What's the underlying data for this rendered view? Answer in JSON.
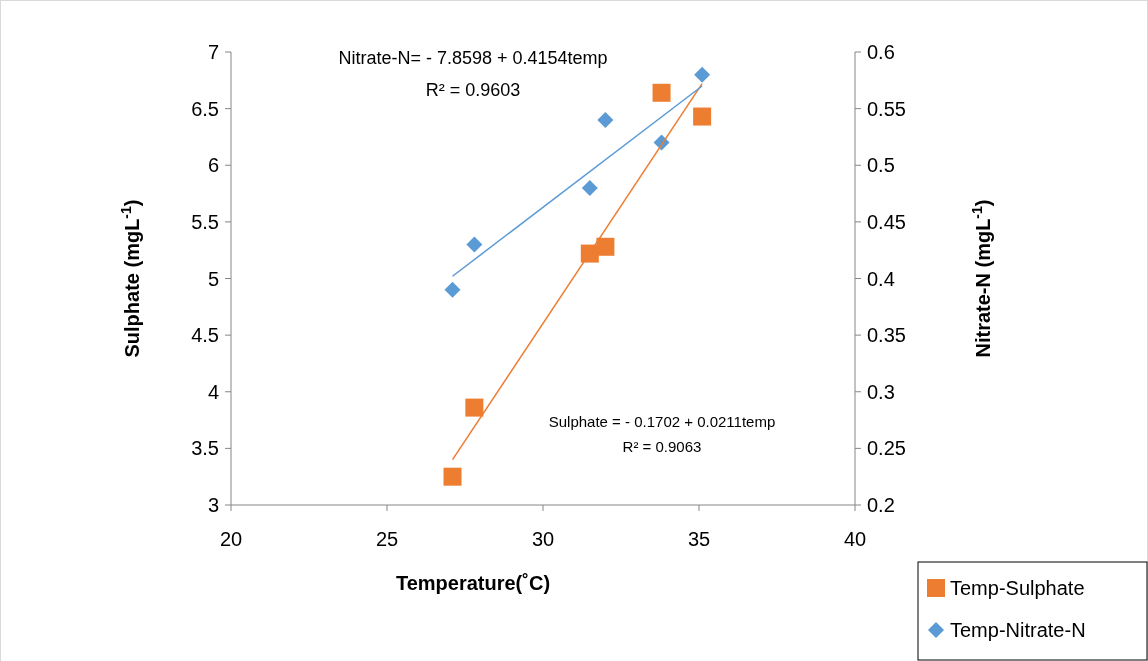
{
  "chart_data": {
    "type": "scatter",
    "xlabel": "Temperature(˚C)",
    "ylabel": "Sulphate (mgL$^{-1}$)",
    "y2label": "Nitrate-N (mgL$^{-1}$)",
    "xlim": [
      20,
      40
    ],
    "xticks": [
      20,
      25,
      30,
      35,
      40
    ],
    "ylim": [
      3,
      7
    ],
    "yticks": [
      3,
      3.5,
      4,
      4.5,
      5,
      5.5,
      6,
      6.5,
      7
    ],
    "y2lim": [
      0.2,
      0.6
    ],
    "y2ticks": [
      0.2,
      0.25,
      0.3,
      0.35,
      0.4,
      0.45,
      0.5,
      0.55,
      0.6
    ],
    "grid": false,
    "legend": "bottom right",
    "series": [
      {
        "name": "Temp-Sulphate",
        "marker": "square",
        "color": "#ed7d31",
        "x": [
          27.1,
          27.8,
          31.5,
          32.0,
          33.8,
          35.1
        ],
        "values": [
          3.25,
          3.86,
          5.22,
          5.28,
          6.64,
          6.43
        ]
      },
      {
        "name": "Temp-Nitrate-N",
        "marker": "diamond",
        "axis": "y2",
        "color": "#5b9bd5",
        "x": [
          27.1,
          27.8,
          31.5,
          32.0,
          33.8,
          35.1
        ],
        "values": [
          0.39,
          0.43,
          0.48,
          0.54,
          0.52,
          0.58
        ]
      },
      {
        "type": "line",
        "marker": "none",
        "color": "#ed7d31",
        "x": [
          27.1,
          35.1
        ],
        "values": [
          3.4,
          6.72
        ]
      },
      {
        "type": "line",
        "marker": "none",
        "axis": "y2",
        "color": "#5b9bd5",
        "x": [
          27.1,
          35.1
        ],
        "values": [
          0.402,
          0.57
        ]
      }
    ],
    "annotations": [
      "Nitrate-N= - 7.8598 + 0.4154temp",
      "R² = 0.9603",
      "Sulphate = - 0.1702 + 0.0211temp",
      "R² = 0.9063"
    ]
  }
}
